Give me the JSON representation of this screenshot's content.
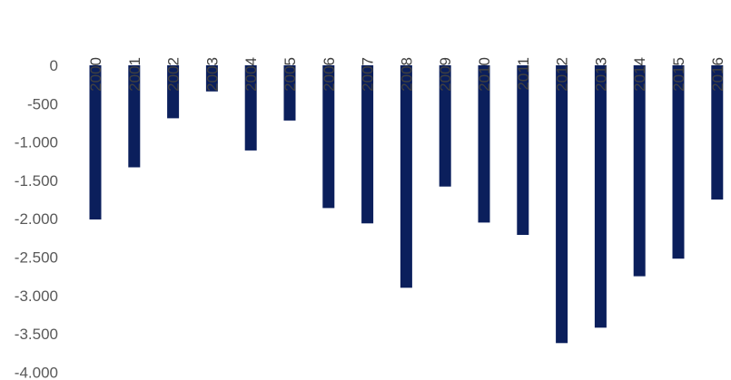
{
  "chart_data": {
    "type": "bar",
    "title": "",
    "xlabel": "",
    "ylabel": "",
    "categories": [
      "2000",
      "2001",
      "2002",
      "2003",
      "2004",
      "2005",
      "2006",
      "2007",
      "2008",
      "2009",
      "2010",
      "2011",
      "2012",
      "2013",
      "2014",
      "2015",
      "2016"
    ],
    "values": [
      -2010,
      -1330,
      -690,
      -340,
      -1110,
      -720,
      -1860,
      -2060,
      -2900,
      -1580,
      -2050,
      -2210,
      -3620,
      -3420,
      -2750,
      -2520,
      -1750
    ],
    "ylim": [
      -4000,
      0
    ],
    "yticks": [
      0,
      -500,
      -1000,
      -1500,
      -2000,
      -2500,
      -3000,
      -3500,
      -4000
    ],
    "ytick_labels": [
      "0",
      "-500",
      "-1.000",
      "-1.500",
      "-2.000",
      "-2.500",
      "-3.000",
      "-3.500",
      "-4.000"
    ],
    "x_label_position": "top",
    "x_label_rotation": "vertical",
    "grid": false,
    "legend": "none",
    "bar_color": "#0b1f5c"
  }
}
